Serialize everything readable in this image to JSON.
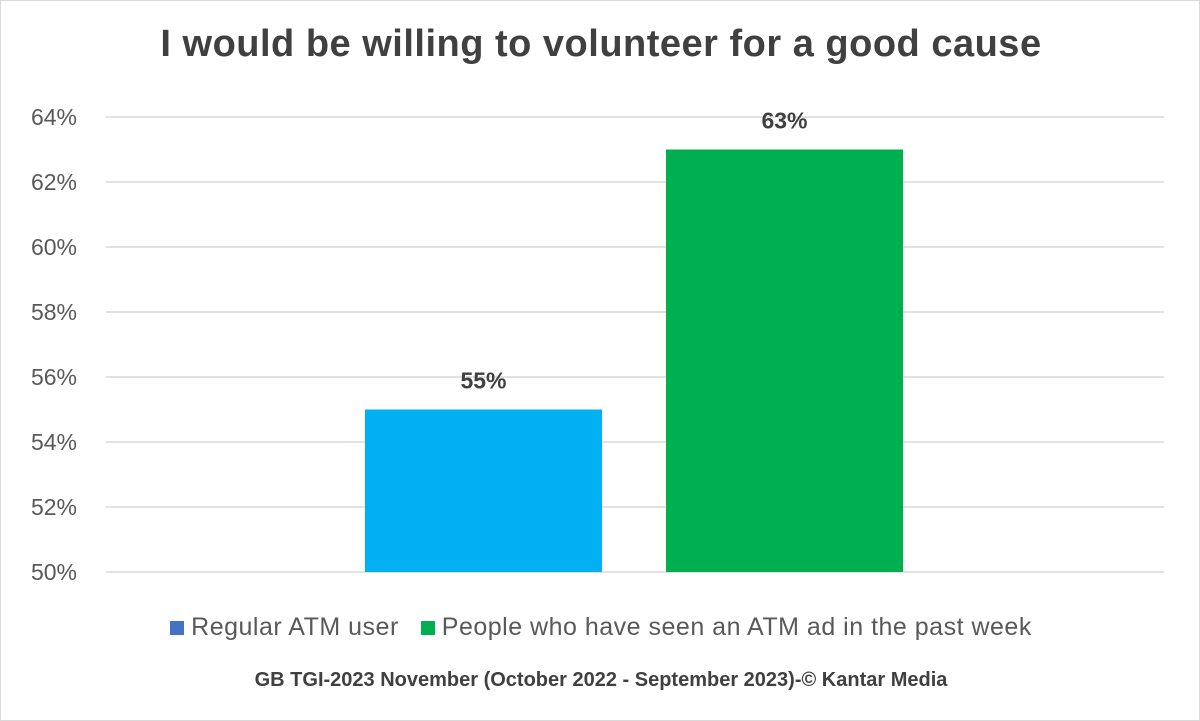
{
  "chart_data": {
    "type": "bar",
    "title": "I would be willing to volunteer for a good cause",
    "categories": [
      ""
    ],
    "series": [
      {
        "name": "Regular ATM user",
        "values": [
          55
        ],
        "color": "#00B0F0",
        "legend_color": "#4472C4",
        "label": "55%"
      },
      {
        "name": "People who have seen an ATM ad in the past week",
        "values": [
          63
        ],
        "color": "#00B050",
        "legend_color": "#00B050",
        "label": "63%"
      }
    ],
    "ylim": [
      50,
      64
    ],
    "yticks": [
      50,
      52,
      54,
      56,
      58,
      60,
      62,
      64
    ],
    "ytick_labels": [
      "50%",
      "52%",
      "54%",
      "56%",
      "58%",
      "60%",
      "62%",
      "64%"
    ],
    "xlabel": "",
    "ylabel": "",
    "grid": true,
    "legend_position": "bottom"
  },
  "source": "GB TGI-2023 November (October 2022 - September 2023)-© Kantar Media"
}
